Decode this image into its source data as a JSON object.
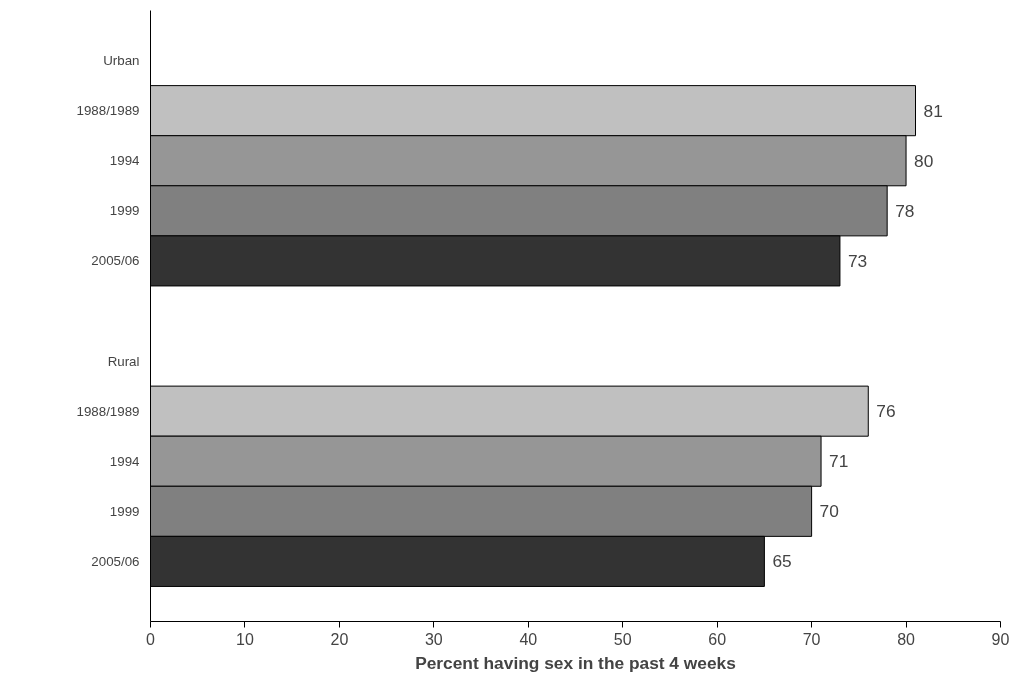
{
  "chart_data": {
    "type": "bar",
    "orientation": "horizontal",
    "xlabel": "Percent having sex in the past 4 weeks",
    "categories": [
      "Urban",
      "1988/1989",
      "1994",
      "1999",
      "2005/06",
      null,
      "Rural",
      "1988/1989",
      "1994",
      "1999",
      "2005/06"
    ],
    "values": [
      null,
      81,
      80,
      78,
      73,
      null,
      null,
      76,
      71,
      70,
      65
    ],
    "colors": [
      "#c0c0c0",
      "#c0c0c0",
      "#969696",
      "#808080",
      "#333333",
      "#c0c0c0",
      "#c0c0c0",
      "#c0c0c0",
      "#969696",
      "#808080",
      "#333333"
    ],
    "xlim": [
      0,
      90
    ],
    "xticks": [
      0,
      10,
      20,
      30,
      40,
      50,
      60,
      70,
      80,
      90
    ],
    "data_labels": true,
    "grid": false
  }
}
